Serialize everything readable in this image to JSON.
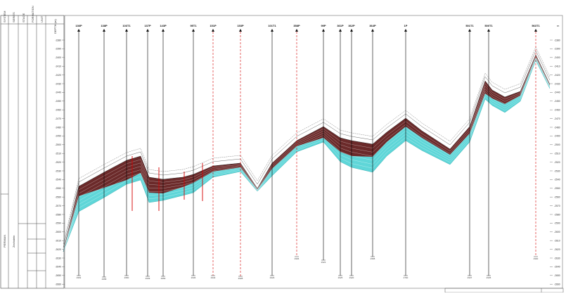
{
  "strat_columns": [
    "SYSTEM",
    "SERIES",
    "STAGE",
    "FORMATION",
    "UNIT"
  ],
  "strat_units": {
    "upper": "PERMIAN",
    "lower": "Zechstein"
  },
  "depth_axis": {
    "label": "DEPTH (m)",
    "corner_label": "m",
    "ticks": [
      "-2380",
      "-2390",
      "-2400",
      "-2410",
      "-2420",
      "-2430",
      "-2440",
      "-2450",
      "-2460",
      "-2470",
      "-2480",
      "-2490",
      "-2500",
      "-2510",
      "-2520",
      "-2530",
      "-2540",
      "-2550",
      "-2560",
      "-2570",
      "-2580",
      "-2590",
      "-2600",
      "-2610",
      "-2620",
      "-2630",
      "-2640",
      "-2650",
      "-2660"
    ]
  },
  "wells": [
    {
      "name": "136P",
      "color": "#000000"
    },
    {
      "name": "138P",
      "color": "#000000"
    },
    {
      "name": "103T1",
      "color": "#000000"
    },
    {
      "name": "137P",
      "color": "#000000"
    },
    {
      "name": "143P",
      "color": "#000000"
    },
    {
      "name": "95T1",
      "color": "#000000"
    },
    {
      "name": "151P",
      "color": "#d40000"
    },
    {
      "name": "153P",
      "color": "#d40000"
    },
    {
      "name": "101T1",
      "color": "#000000"
    },
    {
      "name": "358P",
      "color": "#d40000"
    },
    {
      "name": "99P",
      "color": "#000000"
    },
    {
      "name": "361P",
      "color": "#000000"
    },
    {
      "name": "362P",
      "color": "#000000"
    },
    {
      "name": "364P",
      "color": "#000000"
    },
    {
      "name": "1P",
      "color": "#000000"
    },
    {
      "name": "501T1",
      "color": "#000000"
    },
    {
      "name": "500T1",
      "color": "#000000"
    },
    {
      "name": "563T1",
      "color": "#d40000"
    }
  ],
  "well_td": [
    "2952",
    "2958",
    "2950",
    "2949",
    "2959",
    "2936",
    "2940",
    "2928",
    "2929",
    "2906",
    "2923",
    "2925",
    "2920",
    "2958",
    "2760",
    "2937",
    "2935",
    "2900"
  ],
  "colors": {
    "reservoir": "#6b2a2a",
    "water": "#5fd6d8",
    "well_black": "#000000",
    "well_red": "#d40000"
  }
}
